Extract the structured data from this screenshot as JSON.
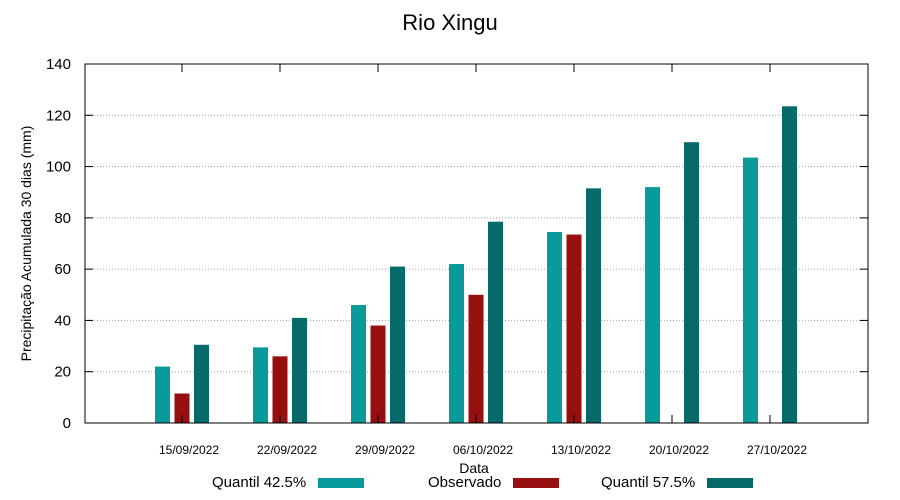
{
  "chart_data": {
    "type": "bar",
    "title": "Rio Xingu",
    "xlabel": "Data",
    "ylabel": "Precipitação Acumulada 30 dias (mm)",
    "ylim": [
      0,
      140
    ],
    "yticks": [
      0,
      20,
      40,
      60,
      80,
      100,
      120,
      140
    ],
    "grid": true,
    "legend_position": "bottom",
    "categories": [
      "15/09/2022",
      "22/09/2022",
      "29/09/2022",
      "06/10/2022",
      "13/10/2022",
      "20/10/2022",
      "27/10/2022"
    ],
    "series": [
      {
        "name": "Quantil 42.5%",
        "color": "#099b9b",
        "values": [
          22,
          29.5,
          46,
          62,
          74.5,
          92,
          103.5
        ]
      },
      {
        "name": "Observado",
        "color": "#961010",
        "values": [
          11.5,
          26,
          38,
          50,
          73.5,
          null,
          null
        ]
      },
      {
        "name": "Quantil 57.5%",
        "color": "#066a6a",
        "values": [
          30.5,
          41,
          61,
          78.5,
          91.5,
          109.5,
          123.5
        ]
      }
    ]
  }
}
